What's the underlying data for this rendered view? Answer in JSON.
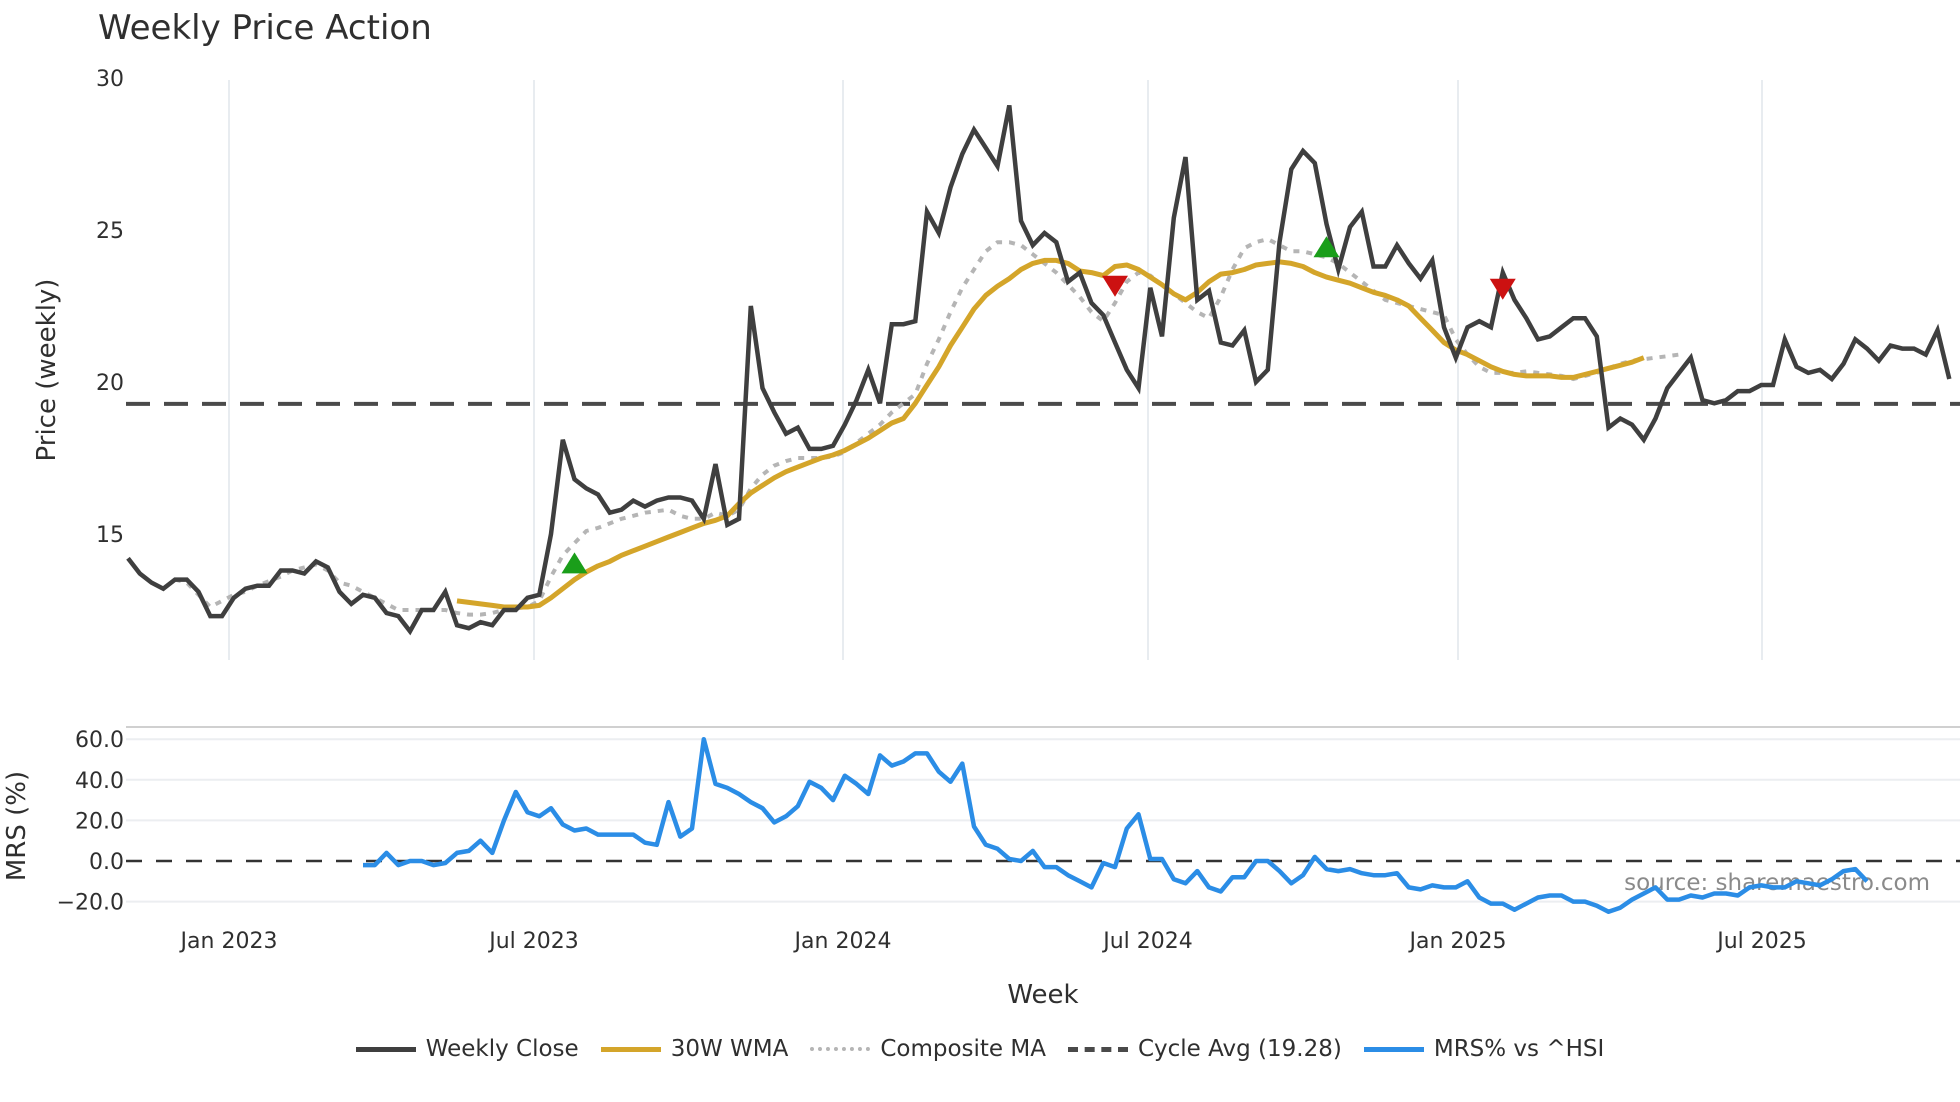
{
  "title": "Weekly Price Action",
  "watermark": "source: sharemaestro.com",
  "legend": [
    {
      "label": "Weekly Close",
      "color": "#3f3f3f",
      "style": "solid"
    },
    {
      "label": "30W WMA",
      "color": "#d4a52a",
      "style": "solid"
    },
    {
      "label": "Composite MA",
      "color": "#b5b5b5",
      "style": "dotted"
    },
    {
      "label": "Cycle Avg (19.28)",
      "color": "#4a4a4a",
      "style": "dashed"
    },
    {
      "label": "MRS% vs ^HSI",
      "color": "#2b8de6",
      "style": "solid"
    }
  ],
  "chart_data": [
    {
      "type": "line",
      "title": "Weekly Price Action",
      "xlabel": "Week",
      "ylabel": "Price (weekly)",
      "ylim": [
        11,
        30
      ],
      "yticks": [
        15,
        20,
        25,
        30
      ],
      "xticks": [
        "Jan 2023",
        "Jul 2023",
        "Jan 2024",
        "Jul 2024",
        "Jan 2025",
        "Jul 2025"
      ],
      "grid": "vertical",
      "x_start": "2022-10 (approx)",
      "x_end": "2025-10 (approx)",
      "hline": {
        "label": "Cycle Avg (19.28)",
        "value": 19.28
      },
      "series": [
        {
          "name": "Weekly Close",
          "color": "#3f3f3f",
          "values": [
            14.2,
            13.7,
            13.4,
            13.2,
            13.5,
            13.5,
            13.1,
            12.3,
            12.3,
            12.9,
            13.2,
            13.3,
            13.3,
            13.8,
            13.8,
            13.7,
            14.1,
            13.9,
            13.1,
            12.7,
            13.0,
            12.9,
            12.4,
            12.3,
            11.8,
            12.5,
            12.5,
            13.1,
            12.0,
            11.9,
            12.1,
            12.0,
            12.5,
            12.5,
            12.9,
            13.0,
            15.0,
            18.1,
            16.8,
            16.5,
            16.3,
            15.7,
            15.8,
            16.1,
            15.9,
            16.1,
            16.2,
            16.2,
            16.1,
            15.5,
            17.3,
            15.3,
            15.5,
            22.5,
            19.8,
            19.0,
            18.3,
            18.5,
            17.8,
            17.8,
            17.9,
            18.6,
            19.4,
            20.4,
            19.3,
            21.9,
            21.9,
            22.0,
            25.6,
            24.9,
            26.4,
            27.5,
            28.3,
            27.7,
            27.1,
            29.1,
            25.3,
            24.5,
            24.9,
            24.6,
            23.3,
            23.6,
            22.6,
            22.2,
            21.3,
            20.4,
            19.8,
            23.1,
            21.5,
            25.4,
            27.4,
            22.7,
            23.0,
            21.3,
            21.2,
            21.7,
            20.0,
            20.4,
            24.6,
            27.0,
            27.6,
            27.2,
            25.2,
            23.7,
            25.1,
            25.6,
            23.8,
            23.8,
            24.5,
            23.9,
            23.4,
            24.0,
            21.8,
            20.8,
            21.8,
            22.0,
            21.8,
            23.6,
            22.7,
            22.1,
            21.4,
            21.5,
            21.8,
            22.1,
            22.1,
            21.5,
            18.5,
            18.8,
            18.6,
            18.1,
            18.8,
            19.8,
            20.3,
            20.8,
            19.4,
            19.3,
            19.4,
            19.7,
            19.7,
            19.9,
            19.9,
            21.4,
            20.5,
            20.3,
            20.4,
            20.1,
            20.6,
            21.4,
            21.1,
            20.7,
            21.2,
            21.1,
            21.1,
            20.9,
            21.7,
            20.1
          ]
        },
        {
          "name": "30W WMA",
          "color": "#d4a52a",
          "start_index": 28,
          "values": [
            12.8,
            12.75,
            12.7,
            12.65,
            12.6,
            12.6,
            12.6,
            12.65,
            12.9,
            13.2,
            13.5,
            13.75,
            13.95,
            14.1,
            14.3,
            14.45,
            14.6,
            14.75,
            14.9,
            15.05,
            15.2,
            15.35,
            15.45,
            15.6,
            16.0,
            16.35,
            16.6,
            16.85,
            17.05,
            17.2,
            17.35,
            17.5,
            17.6,
            17.75,
            17.95,
            18.15,
            18.4,
            18.65,
            18.8,
            19.3,
            19.9,
            20.5,
            21.2,
            21.8,
            22.4,
            22.85,
            23.15,
            23.4,
            23.7,
            23.9,
            24.0,
            24.0,
            23.9,
            23.65,
            23.6,
            23.5,
            23.8,
            23.85,
            23.7,
            23.45,
            23.2,
            22.9,
            22.7,
            22.95,
            23.3,
            23.55,
            23.6,
            23.7,
            23.85,
            23.9,
            23.95,
            23.9,
            23.8,
            23.6,
            23.45,
            23.35,
            23.25,
            23.1,
            22.95,
            22.85,
            22.7,
            22.5,
            22.1,
            21.7,
            21.3,
            21.05,
            20.9,
            20.7,
            20.5,
            20.35,
            20.25,
            20.2,
            20.2,
            20.2,
            20.15,
            20.15,
            20.25,
            20.35,
            20.45,
            20.55,
            20.65,
            20.8
          ]
        },
        {
          "name": "Composite MA",
          "color": "#b5b5b5",
          "values": [
            null,
            null,
            null,
            null,
            13.5,
            13.4,
            13.0,
            12.6,
            12.8,
            13.0,
            13.1,
            13.3,
            13.45,
            13.6,
            13.8,
            13.9,
            14.0,
            13.8,
            13.4,
            13.3,
            13.1,
            12.9,
            12.7,
            12.5,
            12.5,
            12.5,
            12.5,
            12.5,
            12.4,
            12.35,
            12.35,
            12.4,
            12.5,
            12.55,
            12.6,
            12.8,
            13.6,
            14.3,
            14.7,
            15.1,
            15.2,
            15.35,
            15.5,
            15.6,
            15.7,
            15.75,
            15.8,
            15.6,
            15.5,
            15.5,
            15.7,
            15.6,
            15.8,
            16.5,
            16.95,
            17.25,
            17.4,
            17.5,
            17.5,
            17.5,
            17.55,
            17.7,
            18.0,
            18.3,
            18.6,
            19.0,
            19.3,
            19.6,
            20.6,
            21.4,
            22.3,
            23.1,
            23.7,
            24.3,
            24.6,
            24.6,
            24.5,
            24.2,
            23.9,
            23.6,
            23.2,
            22.8,
            22.3,
            22.0,
            22.6,
            23.3,
            23.6,
            23.5,
            23.2,
            22.9,
            22.6,
            22.3,
            22.1,
            22.8,
            23.7,
            24.4,
            24.6,
            24.7,
            24.5,
            24.3,
            24.3,
            24.2,
            24.1,
            23.9,
            23.6,
            23.3,
            23.0,
            22.7,
            22.6,
            22.5,
            22.4,
            22.3,
            22.2,
            21.4,
            20.9,
            20.5,
            20.3,
            20.3,
            20.3,
            20.35,
            20.3,
            20.25,
            20.2,
            20.1,
            20.2,
            20.3,
            20.45,
            20.6,
            20.7,
            20.75,
            20.8,
            20.85,
            20.9
          ]
        }
      ]
    },
    {
      "type": "line",
      "title": "",
      "xlabel": "Week",
      "ylabel": "MRS (%)",
      "ylim": [
        -25,
        65
      ],
      "yticks": [
        "-20.0",
        "0.0",
        "20.0",
        "40.0",
        "60.0"
      ],
      "hline": {
        "value": 0
      },
      "series": [
        {
          "name": "MRS% vs ^HSI",
          "color": "#2b8de6",
          "start_index": 20,
          "values": [
            -2,
            -2,
            4,
            -2,
            0,
            0,
            -2,
            -1,
            4,
            5,
            10,
            4,
            20,
            34,
            24,
            22,
            26,
            18,
            15,
            16,
            13,
            13,
            13,
            13,
            9,
            8,
            29,
            12,
            16,
            60,
            38,
            36,
            33,
            29,
            26,
            19,
            22,
            27,
            39,
            36,
            30,
            42,
            38,
            33,
            52,
            47,
            49,
            53,
            53,
            44,
            39,
            48,
            17,
            8,
            6,
            1,
            0,
            5,
            -3,
            -3,
            -7,
            -10,
            -13,
            -1,
            -3,
            16,
            23,
            1,
            1,
            -9,
            -11,
            -5,
            -13,
            -15,
            -8,
            -8,
            0,
            0,
            -5,
            -11,
            -7,
            2,
            -4,
            -5,
            -4,
            -6,
            -7,
            -7,
            -6,
            -13,
            -14,
            -12,
            -13,
            -13,
            -10,
            -18,
            -21,
            -21,
            -24,
            -21,
            -18,
            -17,
            -17,
            -20,
            -20,
            -22,
            -25,
            -23,
            -19,
            -16,
            -13,
            -19,
            -19,
            -17,
            -18,
            -16,
            -16,
            -17,
            -13,
            -12,
            -13,
            -13,
            -10,
            -11,
            -12,
            -9,
            -5,
            -4,
            -10
          ]
        }
      ]
    }
  ],
  "markers": [
    {
      "type": "buy",
      "color": "#1a9e1a",
      "index": 38,
      "price": 14.0
    },
    {
      "type": "sell",
      "color": "#cc1111",
      "index": 84,
      "price": 23.2
    },
    {
      "type": "buy",
      "color": "#1a9e1a",
      "index": 102,
      "price": 24.4
    },
    {
      "type": "sell",
      "color": "#cc1111",
      "index": 117,
      "price": 23.1
    }
  ],
  "xaxis_labels": [
    "Jan 2023",
    "Jul 2023",
    "Jan 2024",
    "Jul 2024",
    "Jan 2025",
    "Jul 2025"
  ],
  "xaxis_title": "Week",
  "price_axis_title": "Price (weekly)",
  "mrs_axis_title": "MRS (%)",
  "price_ticks": [
    "15",
    "20",
    "25",
    "30"
  ],
  "mrs_ticks": [
    "60.0",
    "40.0",
    "20.0",
    "0.0",
    "−20.0"
  ]
}
